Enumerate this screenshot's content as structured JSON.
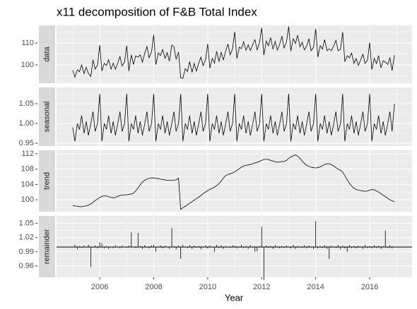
{
  "title": "x11 decomposition of F&B Total Index",
  "x_label": "Year",
  "xlim": [
    2004.4,
    2017.57
  ],
  "xticks": [
    2006,
    2008,
    2010,
    2012,
    2014,
    2016
  ],
  "xminor": [
    2005,
    2007,
    2009,
    2011,
    2013,
    2015,
    2017
  ],
  "x": [
    2005,
    2005.08,
    2005.17,
    2005.25,
    2005.33,
    2005.42,
    2005.5,
    2005.58,
    2005.67,
    2005.75,
    2005.83,
    2005.92,
    2006,
    2006.08,
    2006.17,
    2006.25,
    2006.33,
    2006.42,
    2006.5,
    2006.58,
    2006.67,
    2006.75,
    2006.83,
    2006.92,
    2007,
    2007.08,
    2007.17,
    2007.25,
    2007.33,
    2007.42,
    2007.5,
    2007.58,
    2007.67,
    2007.75,
    2007.83,
    2007.92,
    2008,
    2008.08,
    2008.17,
    2008.25,
    2008.33,
    2008.42,
    2008.5,
    2008.58,
    2008.67,
    2008.75,
    2008.83,
    2008.92,
    2009,
    2009.08,
    2009.17,
    2009.25,
    2009.33,
    2009.42,
    2009.5,
    2009.58,
    2009.67,
    2009.75,
    2009.83,
    2009.92,
    2010,
    2010.08,
    2010.17,
    2010.25,
    2010.33,
    2010.42,
    2010.5,
    2010.58,
    2010.67,
    2010.75,
    2010.83,
    2010.92,
    2011,
    2011.08,
    2011.17,
    2011.25,
    2011.33,
    2011.42,
    2011.5,
    2011.58,
    2011.67,
    2011.75,
    2011.83,
    2011.92,
    2012,
    2012.08,
    2012.17,
    2012.25,
    2012.33,
    2012.42,
    2012.5,
    2012.58,
    2012.67,
    2012.75,
    2012.83,
    2012.92,
    2013,
    2013.08,
    2013.17,
    2013.25,
    2013.33,
    2013.42,
    2013.5,
    2013.58,
    2013.67,
    2013.75,
    2013.83,
    2013.92,
    2014,
    2014.08,
    2014.17,
    2014.25,
    2014.33,
    2014.42,
    2014.5,
    2014.58,
    2014.67,
    2014.75,
    2014.83,
    2014.92,
    2015,
    2015.08,
    2015.17,
    2015.25,
    2015.33,
    2015.42,
    2015.5,
    2015.58,
    2015.67,
    2015.75,
    2015.83,
    2015.92,
    2016,
    2016.08,
    2016.17,
    2016.25,
    2016.33,
    2016.42,
    2016.5,
    2016.58,
    2016.67,
    2016.75,
    2016.83,
    2016.92
  ],
  "chart_data": [
    {
      "type": "line",
      "strip": "data",
      "color": "#000000",
      "ylim": [
        91.6,
        118.1
      ],
      "yticks": [
        100,
        110
      ],
      "yminor": [
        95,
        105,
        115
      ],
      "values": [
        97.5,
        94.4,
        97.8,
        96.9,
        100.0,
        96.1,
        98.9,
        96.1,
        94.7,
        102.3,
        98.1,
        99.9,
        109.1,
        97.2,
        100.7,
        99.7,
        102.4,
        98.1,
        100.8,
        98.0,
        100.9,
        103.8,
        99.5,
        101.4,
        108.7,
        97.2,
        104.6,
        100.2,
        104.1,
        103.6,
        104.6,
        101.2,
        105.5,
        108.4,
        103.3,
        106.0,
        113.7,
        100.1,
        105.5,
        104.3,
        107.0,
        103.0,
        105.6,
        101.7,
        109.1,
        108.3,
        102.7,
        105.9,
        94.0,
        93.9,
        98.3,
        97.0,
        101.5,
        96.6,
        100.7,
        97.2,
        100.9,
        103.6,
        99.7,
        102.4,
        109.6,
        98.5,
        103.0,
        100.8,
        106.2,
        101.5,
        105.7,
        102.3,
        106.5,
        109.6,
        104.6,
        107.4,
        115.1,
        102.9,
        108.1,
        107.5,
        110.6,
        106.7,
        109.2,
        106.6,
        109.4,
        111.6,
        106.9,
        110.2,
        117.0,
        104.5,
        110.9,
        108.8,
        112.5,
        107.2,
        110.8,
        106.8,
        109.6,
        113.2,
        107.8,
        110.6,
        117.6,
        106.4,
        112.0,
        109.8,
        113.6,
        108.3,
        110.4,
        106.9,
        108.7,
        112.0,
        106.5,
        108.0,
        116.5,
        103.6,
        108.8,
        107.2,
        111.6,
        106.5,
        107.4,
        106.5,
        108.8,
        111.2,
        106.5,
        107.2,
        115.0,
        101.5,
        104.2,
        103.2,
        105.4,
        100.7,
        102.9,
        99.8,
        102.4,
        104.9,
        100.7,
        102.1,
        110.2,
        97.9,
        103.0,
        100.6,
        104.3,
        98.7,
        101.9,
        101.3,
        100.2,
        103.4,
        97.4,
        104.5
      ]
    },
    {
      "type": "line",
      "strip": "seasonal",
      "color": "#000000",
      "ylim": [
        0.943,
        1.091
      ],
      "yticks": [
        0.95,
        {
          "value": 1,
          "label": "1.00"
        },
        1.05
      ],
      "yminor": [
        0.975,
        1.025,
        1.075
      ],
      "values": [
        0.99,
        0.955,
        1.0,
        0.985,
        1.02,
        0.975,
        1.005,
        0.97,
        1.0,
        1.03,
        0.98,
        1.0,
        1.075,
        0.955,
        1.0,
        0.985,
        1.02,
        0.975,
        1.005,
        0.97,
        1.0,
        1.03,
        0.98,
        1.0,
        1.075,
        0.955,
        1.0,
        0.985,
        1.02,
        0.975,
        1.005,
        0.97,
        1.0,
        1.03,
        0.98,
        1.0,
        1.075,
        0.955,
        1.0,
        0.985,
        1.02,
        0.975,
        1.005,
        0.97,
        1.0,
        1.03,
        0.98,
        1.0,
        1.075,
        0.955,
        1.0,
        0.985,
        1.02,
        0.975,
        1.005,
        0.97,
        1.0,
        1.03,
        0.98,
        1.0,
        1.075,
        0.955,
        1.0,
        0.985,
        1.02,
        0.975,
        1.005,
        0.97,
        1.0,
        1.03,
        0.98,
        1.0,
        1.075,
        0.955,
        1.0,
        0.985,
        1.02,
        0.975,
        1.005,
        0.97,
        1.0,
        1.03,
        0.98,
        1.0,
        1.075,
        0.955,
        1.0,
        0.985,
        1.02,
        0.975,
        1.005,
        0.97,
        1.0,
        1.03,
        0.98,
        1.0,
        1.075,
        0.955,
        1.0,
        0.985,
        1.02,
        0.975,
        1.005,
        0.97,
        1.0,
        1.03,
        0.98,
        1.0,
        1.075,
        0.955,
        1.0,
        0.985,
        1.02,
        0.975,
        1.005,
        0.97,
        1.0,
        1.03,
        0.98,
        1.0,
        1.075,
        0.955,
        1.0,
        0.985,
        1.02,
        0.975,
        1.005,
        0.97,
        1.0,
        1.03,
        0.98,
        1.0,
        1.075,
        0.955,
        1.0,
        0.985,
        1.02,
        0.975,
        1.005,
        0.97,
        1.0,
        1.03,
        0.98,
        1.05
      ]
    },
    {
      "type": "line",
      "strip": "trend",
      "color": "#000000",
      "ylim": [
        96.9,
        112.92
      ],
      "yticks": [
        100,
        104,
        108,
        112
      ],
      "yminor": [
        98,
        102,
        106,
        110
      ],
      "values": [
        98.5,
        98.4,
        98.3,
        98.2,
        98.2,
        98.3,
        98.4,
        98.6,
        98.9,
        99.3,
        99.8,
        100.2,
        100.6,
        100.9,
        101.0,
        101.0,
        100.8,
        100.6,
        100.5,
        100.6,
        100.9,
        101.1,
        101.2,
        101.3,
        101.3,
        101.4,
        101.5,
        101.7,
        102.3,
        103.1,
        103.9,
        104.6,
        105.1,
        105.4,
        105.6,
        105.7,
        105.7,
        105.6,
        105.5,
        105.4,
        105.3,
        105.2,
        105.1,
        105.1,
        105.1,
        105.1,
        105.2,
        105.6,
        97.5,
        97.9,
        98.3,
        98.7,
        99.1,
        99.5,
        99.9,
        100.3,
        100.7,
        101.1,
        101.6,
        102.0,
        102.4,
        102.7,
        103.0,
        103.3,
        103.7,
        104.2,
        104.9,
        105.7,
        106.3,
        106.6,
        106.8,
        107.0,
        107.3,
        107.7,
        108.1,
        108.5,
        108.8,
        109.0,
        109.1,
        109.2,
        109.4,
        109.6,
        109.8,
        110.0,
        110.3,
        110.5,
        110.6,
        110.5,
        110.3,
        110.1,
        109.9,
        109.8,
        109.9,
        110.0,
        110.0,
        110.3,
        110.8,
        111.2,
        111.5,
        111.7,
        111.4,
        110.8,
        110.1,
        109.5,
        109.0,
        108.7,
        108.5,
        108.4,
        108.3,
        108.4,
        108.6,
        108.9,
        109.2,
        109.4,
        109.4,
        109.2,
        108.8,
        108.4,
        108.0,
        107.7,
        107.2,
        106.3,
        105.2,
        104.3,
        103.6,
        103.0,
        102.7,
        102.5,
        102.4,
        102.3,
        102.2,
        102.3,
        102.5,
        102.7,
        102.6,
        102.3,
        102.0,
        101.6,
        101.2,
        100.8,
        100.4,
        100.0,
        99.7,
        99.5
      ]
    },
    {
      "type": "bar",
      "strip": "remainder",
      "color": "#000000",
      "baseline": 1,
      "ylim": [
        0.936,
        1.066
      ],
      "yticks": [
        0.96,
        0.99,
        1.02,
        1.05
      ],
      "yminor": [
        0.975,
        1.005,
        1.035
      ],
      "values": [
        1.0,
        1.005,
        0.995,
        1.002,
        0.998,
        1.003,
        1.0,
        1.005,
        0.958,
        1.0,
        1.003,
        0.997,
        1.01,
        1.008,
        0.997,
        1.002,
        0.996,
        1.0,
        0.998,
        1.004,
        1.0,
        0.997,
        1.003,
        1.001,
        0.999,
        1.003,
        1.031,
        1.0,
        0.998,
        1.03,
        1.002,
        0.996,
        1.004,
        1.0,
        0.997,
        1.003,
        1.005,
        0.99,
        1.0,
        1.004,
        0.997,
        1.003,
        1.0,
        0.996,
        1.04,
        1.002,
        0.995,
        1.003,
        0.975,
        1.005,
        1.0,
        0.998,
        1.004,
        0.996,
        1.003,
        0.999,
        1.002,
        0.995,
        1.001,
        1.004,
        0.997,
        1.003,
        1.0,
        0.99,
        1.005,
        0.998,
        1.003,
        0.996,
        1.002,
        1.0,
        0.998,
        1.004,
        1.003,
        0.997,
        1.0,
        1.005,
        0.998,
        1.002,
        0.996,
        1.004,
        1.0,
        0.99,
        0.991,
        1.002,
        1.043,
        0.93,
        1.003,
        0.998,
        1.002,
        0.996,
        1.004,
        1.0,
        0.997,
        1.002,
        0.998,
        1.003,
        1.0,
        0.997,
        1.005,
        0.996,
        1.002,
        1.0,
        0.998,
        1.004,
        0.997,
        1.003,
        1.0,
        0.996,
        1.055,
        0.997,
        1.002,
        0.998,
        1.004,
        0.996,
        0.975,
        1.003,
        1.0,
        0.998,
        1.005,
        0.995,
        1.003,
        0.997,
        0.99,
        1.004,
        0.998,
        1.002,
        0.997,
        1.003,
        1.0,
        0.996,
        1.005,
        0.998,
        1.002,
        0.997,
        1.004,
        0.998,
        1.003,
        0.996,
        1.002,
        1.035,
        0.998,
        1.004,
        0.997,
        1.0
      ]
    }
  ]
}
